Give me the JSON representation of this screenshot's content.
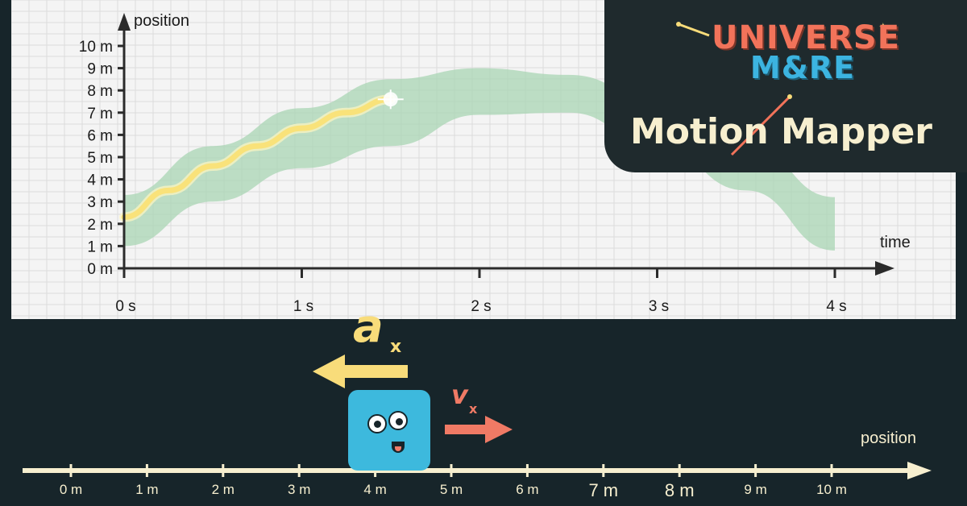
{
  "app": {
    "brand_line1": "UNIVERSE",
    "brand_line2": "M&RE",
    "title": "Motion Mapper"
  },
  "graph": {
    "y_axis_title": "position",
    "x_axis_title": "time",
    "background": "#f4f4f4",
    "band_color": "#a9d6b4",
    "trace_color": "#f9e27a"
  },
  "chart_data": {
    "type": "line",
    "title": "",
    "xlabel": "time",
    "ylabel": "position",
    "x_ticks": [
      "0 s",
      "1 s",
      "2 s",
      "3 s",
      "4 s"
    ],
    "y_ticks": [
      "0 m",
      "1 m",
      "2 m",
      "3 m",
      "4 m",
      "5 m",
      "6 m",
      "7 m",
      "8 m",
      "9 m",
      "10 m"
    ],
    "xlim": [
      0,
      4
    ],
    "ylim": [
      0,
      10
    ],
    "grid": true,
    "band": {
      "x": [
        0,
        0.5,
        1,
        1.5,
        2,
        2.5,
        3,
        3.5,
        4
      ],
      "lower": [
        1.0,
        3.0,
        4.5,
        5.5,
        6.9,
        7.0,
        5.5,
        3.5,
        0.8
      ],
      "upper": [
        3.3,
        5.5,
        7.2,
        8.5,
        9.0,
        8.7,
        7.6,
        5.6,
        3.2
      ]
    },
    "trace": {
      "x": [
        0,
        0.25,
        0.5,
        0.75,
        1.0,
        1.25,
        1.5
      ],
      "y": [
        2.3,
        3.5,
        4.6,
        5.5,
        6.3,
        7.0,
        7.6
      ]
    }
  },
  "track": {
    "axis_title": "position",
    "ticks": [
      {
        "label": "0 m",
        "value": 0
      },
      {
        "label": "1 m",
        "value": 1
      },
      {
        "label": "2 m",
        "value": 2
      },
      {
        "label": "3 m",
        "value": 3
      },
      {
        "label": "4 m",
        "value": 4
      },
      {
        "label": "5 m",
        "value": 5
      },
      {
        "label": "6 m",
        "value": 6
      },
      {
        "label": "7 m",
        "value": 7
      },
      {
        "label": "8 m",
        "value": 8
      },
      {
        "label": "9 m",
        "value": 9
      },
      {
        "label": "10 m",
        "value": 10
      }
    ],
    "block_position_m": 4,
    "acceleration_label": "a",
    "acceleration_subscript": "x",
    "acceleration_direction": "left",
    "velocity_label": "v",
    "velocity_subscript": "x",
    "velocity_direction": "right",
    "acceleration_color": "#f8dc7a",
    "velocity_color": "#f07a65",
    "block_color": "#3db9dd"
  }
}
